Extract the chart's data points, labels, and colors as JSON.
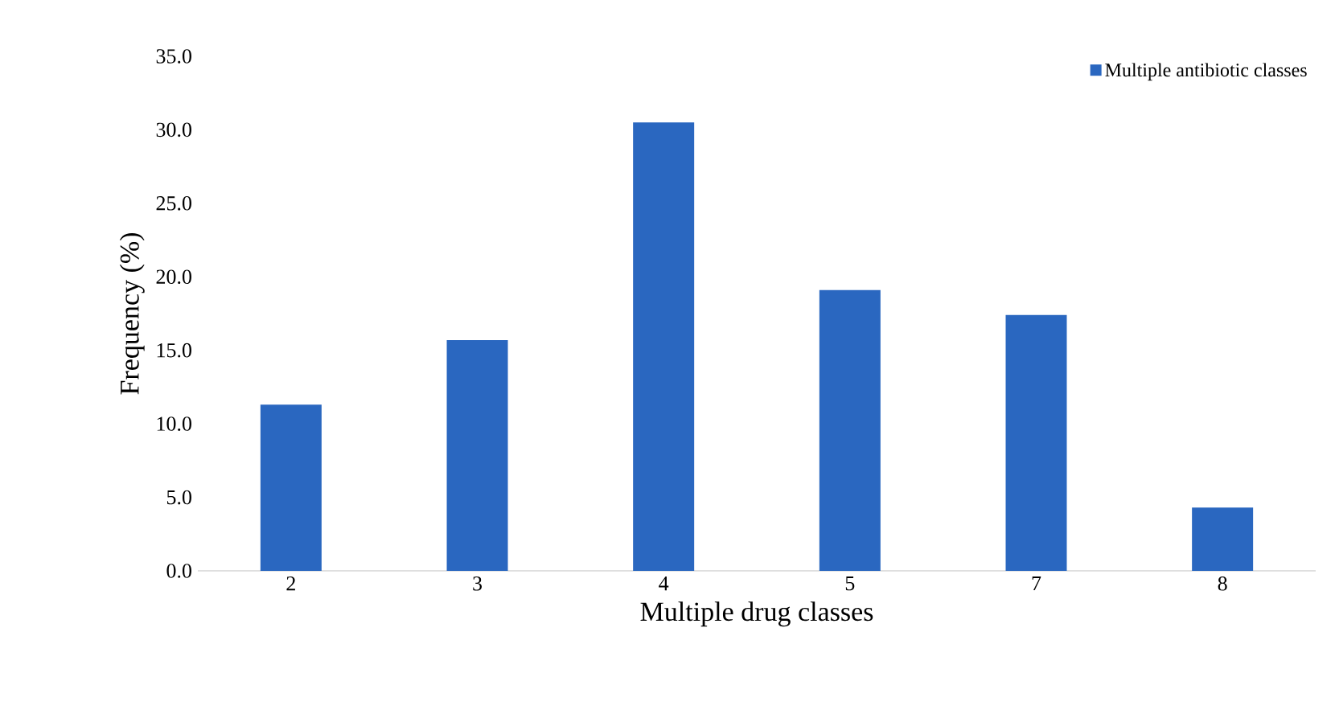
{
  "chart_data": {
    "type": "bar",
    "xlabel": "Multiple drug classes",
    "ylabel": "Frequency (%)",
    "categories": [
      "2",
      "3",
      "4",
      "5",
      "7",
      "8"
    ],
    "series": [
      {
        "name": "Multiple antibiotic classes",
        "color": "#2a67c0",
        "values": [
          11.3,
          15.7,
          30.5,
          19.1,
          17.4,
          4.3
        ]
      }
    ],
    "ylim": [
      0,
      35
    ],
    "yticks": [
      {
        "value": 0,
        "label": "0.0"
      },
      {
        "value": 5,
        "label": "5.0"
      },
      {
        "value": 10,
        "label": "10.0"
      },
      {
        "value": 15,
        "label": "15.0"
      },
      {
        "value": 20,
        "label": "20.0"
      },
      {
        "value": 25,
        "label": "25.0"
      },
      {
        "value": 30,
        "label": "30.0"
      },
      {
        "value": 35,
        "label": "35.0"
      }
    ],
    "grid": false,
    "legend": "top right"
  }
}
